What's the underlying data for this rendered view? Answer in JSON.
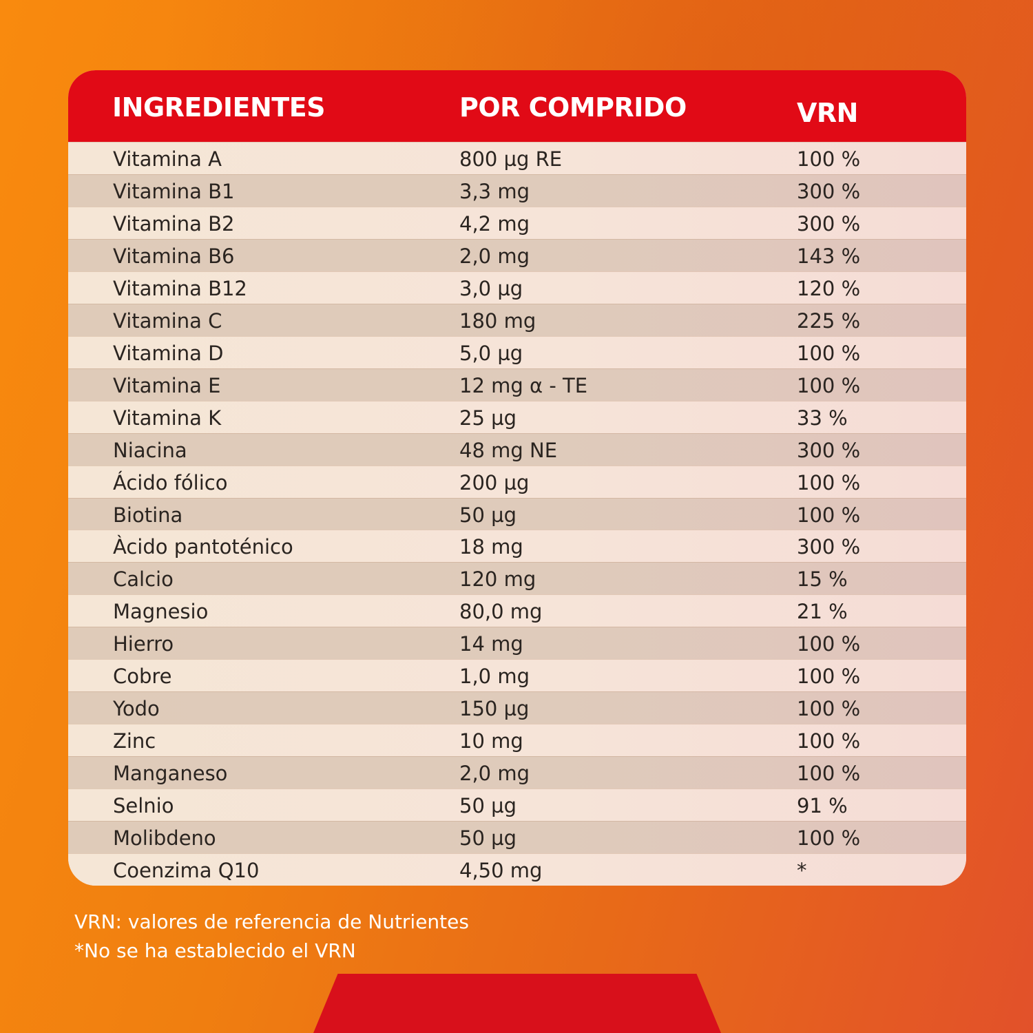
{
  "table": {
    "headers": {
      "ingredient": "INGREDIENTES",
      "per_tablet": "POR COMPRIDO",
      "vrn": "VRN"
    },
    "rows": [
      {
        "ingredient": "Vitamina A",
        "amount": "800 µg RE",
        "vrn": "100 %"
      },
      {
        "ingredient": "Vitamina B1",
        "amount": "3,3 mg",
        "vrn": "300 %"
      },
      {
        "ingredient": "Vitamina B2",
        "amount": "4,2 mg",
        "vrn": "300 %"
      },
      {
        "ingredient": "Vitamina B6",
        "amount": "2,0 mg",
        "vrn": "143 %"
      },
      {
        "ingredient": "Vitamina B12",
        "amount": "3,0 µg",
        "vrn": "120 %"
      },
      {
        "ingredient": "Vitamina C",
        "amount": "180 mg",
        "vrn": "225 %"
      },
      {
        "ingredient": "Vitamina D",
        "amount": "5,0 µg",
        "vrn": "100 %"
      },
      {
        "ingredient": "Vitamina E",
        "amount": "12 mg α - TE",
        "vrn": "100 %"
      },
      {
        "ingredient": "Vitamina K",
        "amount": "25 µg",
        "vrn": "33 %"
      },
      {
        "ingredient": "Niacina",
        "amount": "48 mg NE",
        "vrn": "300 %"
      },
      {
        "ingredient": "Ácido fólico",
        "amount": "200 µg",
        "vrn": "100 %"
      },
      {
        "ingredient": "Biotina",
        "amount": "50 µg",
        "vrn": "100 %"
      },
      {
        "ingredient": "Àcido pantoténico",
        "amount": "18 mg",
        "vrn": "300 %"
      },
      {
        "ingredient": "Calcio",
        "amount": "120 mg",
        "vrn": "15 %"
      },
      {
        "ingredient": "Magnesio",
        "amount": "80,0 mg",
        "vrn": "21 %"
      },
      {
        "ingredient": "Hierro",
        "amount": "14 mg",
        "vrn": "100 %"
      },
      {
        "ingredient": "Cobre",
        "amount": "1,0 mg",
        "vrn": "100 %"
      },
      {
        "ingredient": "Yodo",
        "amount": "150 µg",
        "vrn": "100 %"
      },
      {
        "ingredient": "Zinc",
        "amount": "10 mg",
        "vrn": "100 %"
      },
      {
        "ingredient": "Manganeso",
        "amount": "2,0 mg",
        "vrn": "100 %"
      },
      {
        "ingredient": "Selnio",
        "amount": "50 µg",
        "vrn": "91 %"
      },
      {
        "ingredient": "Molibdeno",
        "amount": "50 µg",
        "vrn": "100 %"
      },
      {
        "ingredient": "Coenzima Q10",
        "amount": "4,50 mg",
        "vrn": "*"
      }
    ]
  },
  "footnotes": {
    "line1": "VRN: valores de referencia de Nutrientes",
    "line2": "*No se ha establecido el VRN"
  },
  "colors": {
    "header_red": "#e10a16",
    "bottom_tab_red": "#d8101b",
    "background_orange": "#f98a0e"
  }
}
